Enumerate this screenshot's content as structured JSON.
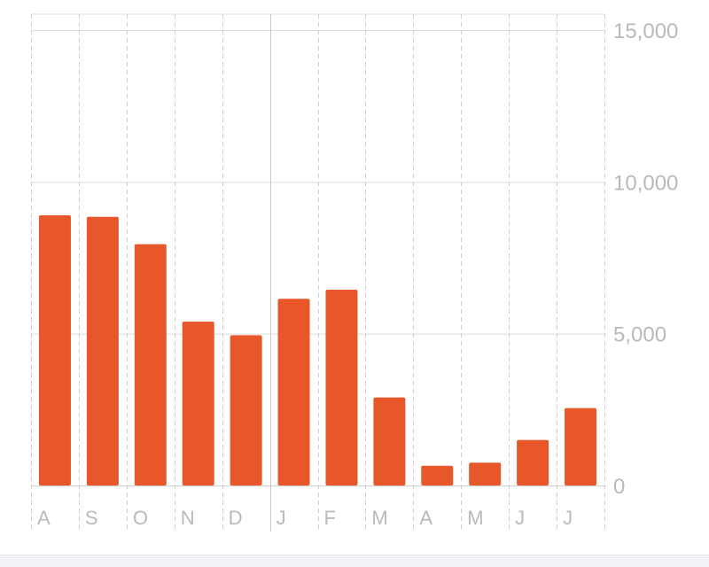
{
  "chart_data": {
    "type": "bar",
    "categories": [
      "A",
      "S",
      "O",
      "N",
      "D",
      "J",
      "F",
      "M",
      "A",
      "M",
      "J",
      "J"
    ],
    "values": [
      8900,
      8850,
      7950,
      5400,
      4950,
      6150,
      6450,
      2900,
      650,
      750,
      1500,
      2550
    ],
    "ylim": [
      0,
      15000
    ],
    "y_ticks": [
      0,
      5000,
      10000,
      15000
    ],
    "y_tick_labels": [
      "0",
      "5,000",
      "10,000",
      "15,000"
    ],
    "y_axis_position": "right",
    "grid": true,
    "bar_color": "#e8572a",
    "grid_color": "#dddddd",
    "label_color": "#b9b9be"
  }
}
